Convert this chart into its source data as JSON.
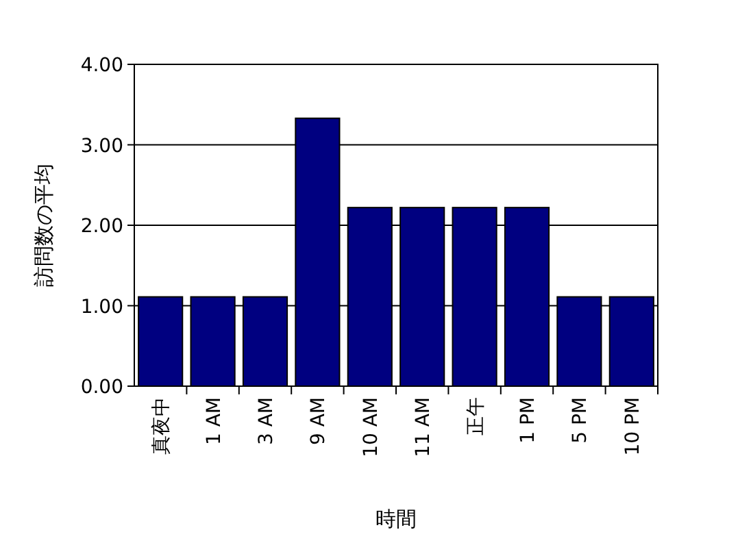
{
  "chart_data": {
    "type": "bar",
    "xlabel": "時間",
    "ylabel": "訪問数の平均",
    "categories": [
      "真夜中",
      "1 AM",
      "3 AM",
      "9 AM",
      "10 AM",
      "11 AM",
      "正午",
      "1 PM",
      "5 PM",
      "10 PM"
    ],
    "values": [
      1.11,
      1.11,
      1.11,
      3.33,
      2.22,
      2.22,
      2.22,
      2.22,
      1.11,
      1.11
    ],
    "color": "#000080",
    "ylim": [
      0,
      4
    ],
    "yticks": [
      {
        "value": 0,
        "label": "0.00"
      },
      {
        "value": 1,
        "label": "1.00"
      },
      {
        "value": 2,
        "label": "2.00"
      },
      {
        "value": 3,
        "label": "3.00"
      },
      {
        "value": 4,
        "label": "4.00"
      }
    ],
    "grid": "y"
  }
}
